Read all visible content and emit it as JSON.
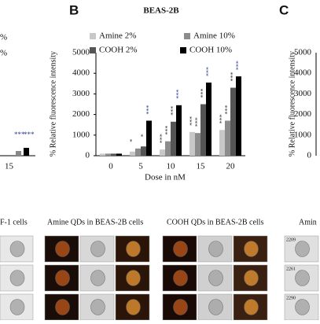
{
  "chart_data": {
    "type": "bar",
    "panel": "B",
    "title": "BEAS-2B",
    "x_label": "Dose in nM",
    "y_label": "% Relative fluorescence intensity",
    "categories": [
      "0",
      "5",
      "10",
      "15",
      "20"
    ],
    "series": [
      {
        "name": "Amine 2%",
        "color": "#c8c8c8",
        "values": [
          100,
          200,
          300,
          1150,
          1250
        ],
        "significance": [
          null,
          "*",
          "***",
          "***",
          "***"
        ]
      },
      {
        "name": "Amine 10%",
        "color": "#8c8c8c",
        "values": [
          100,
          350,
          700,
          1100,
          1700
        ],
        "significance": [
          null,
          null,
          "***",
          "***",
          "***"
        ]
      },
      {
        "name": "COOH 2%",
        "color": "#555555",
        "values": [
          100,
          450,
          1650,
          2500,
          3300
        ],
        "significance": [
          null,
          "*",
          "***",
          "***",
          "***"
        ]
      },
      {
        "name": "COOH 10%",
        "color": "#000000",
        "values": [
          100,
          1700,
          2450,
          3550,
          3850
        ],
        "significance": [
          null,
          "***",
          "***",
          "***",
          "***"
        ]
      }
    ],
    "ylim": [
      0,
      5000
    ],
    "yticks": [
      0,
      1000,
      2000,
      3000,
      4000,
      5000
    ]
  },
  "left_panel": {
    "tick": "15",
    "legend": [
      "%",
      "%"
    ],
    "stars": [
      "***",
      "***"
    ]
  },
  "panel_c": {
    "label": "C",
    "y_label": "% Relative fluorescence intensity",
    "ticks": [
      "5000",
      "4000",
      "3000",
      "2000",
      "1000",
      "0"
    ]
  },
  "images": {
    "captions": [
      "F-1 cells",
      "Amine QDs in BEAS-2B cells",
      "COOH QDs in BEAS-2B cells",
      "Amin"
    ],
    "ids": [
      "2209",
      "2261",
      "2290"
    ]
  }
}
